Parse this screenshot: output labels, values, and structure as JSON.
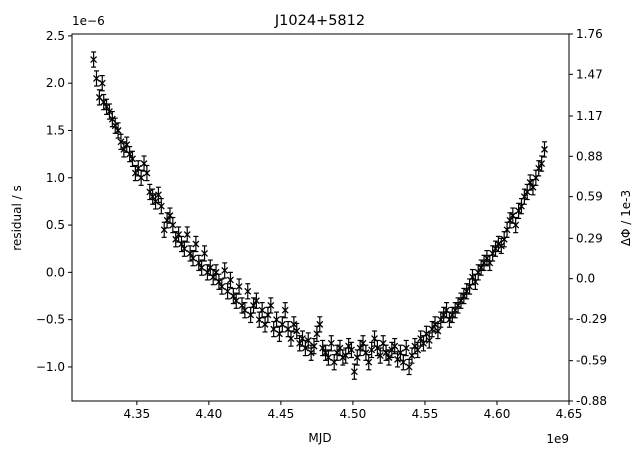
{
  "chart_data": {
    "type": "scatter",
    "title": "J1024+5812",
    "xlabel": "MJD",
    "ylabel": "residual / s",
    "ylabel_right": "ΔΦ / 1e-3",
    "x_offset_text": "1e9",
    "y_offset_text": "1e−6",
    "marker": "x",
    "error_bars": true,
    "grid": false,
    "xlim": [
      4.305,
      4.65
    ],
    "ylim": [
      -1.36,
      2.52
    ],
    "x_ticks": [
      4.35,
      4.4,
      4.45,
      4.5,
      4.55,
      4.6,
      4.65
    ],
    "x_tick_labels": [
      "4.35",
      "4.40",
      "4.45",
      "4.50",
      "4.55",
      "4.60",
      "4.65"
    ],
    "y_ticks": [
      -1.0,
      -0.5,
      0.0,
      0.5,
      1.0,
      1.5,
      2.0,
      2.5
    ],
    "y_tick_labels": [
      "−1.0",
      "−0.5",
      "0.0",
      "0.5",
      "1.0",
      "1.5",
      "2.0",
      "2.5"
    ],
    "y_right_ticks": [
      -0.88,
      -0.59,
      -0.29,
      0.0,
      0.29,
      0.59,
      0.88,
      1.17,
      1.47,
      1.76
    ],
    "y_right_tick_labels": [
      "-0.88",
      "-0.59",
      "-0.29",
      "0.0",
      "0.29",
      "0.59",
      "0.88",
      "1.17",
      "1.47",
      "1.76"
    ],
    "y_right_lim": [
      -0.88,
      1.76
    ],
    "error": 0.08,
    "points": [
      [
        4.32,
        2.25
      ],
      [
        4.322,
        2.05
      ],
      [
        4.324,
        1.85
      ],
      [
        4.326,
        2.0
      ],
      [
        4.327,
        1.8
      ],
      [
        4.329,
        1.75
      ],
      [
        4.331,
        1.7
      ],
      [
        4.333,
        1.62
      ],
      [
        4.335,
        1.55
      ],
      [
        4.337,
        1.5
      ],
      [
        4.339,
        1.38
      ],
      [
        4.341,
        1.3
      ],
      [
        4.343,
        1.35
      ],
      [
        4.345,
        1.25
      ],
      [
        4.347,
        1.2
      ],
      [
        4.349,
        1.05
      ],
      [
        4.351,
        1.1
      ],
      [
        4.353,
        1.0
      ],
      [
        4.355,
        1.15
      ],
      [
        4.357,
        1.05
      ],
      [
        4.359,
        0.85
      ],
      [
        4.361,
        0.8
      ],
      [
        4.363,
        0.75
      ],
      [
        4.365,
        0.82
      ],
      [
        4.367,
        0.7
      ],
      [
        4.369,
        0.45
      ],
      [
        4.371,
        0.55
      ],
      [
        4.373,
        0.6
      ],
      [
        4.375,
        0.5
      ],
      [
        4.377,
        0.35
      ],
      [
        4.379,
        0.4
      ],
      [
        4.381,
        0.3
      ],
      [
        4.383,
        0.25
      ],
      [
        4.385,
        0.4
      ],
      [
        4.387,
        0.2
      ],
      [
        4.389,
        0.15
      ],
      [
        4.391,
        0.3
      ],
      [
        4.393,
        0.1
      ],
      [
        4.395,
        0.05
      ],
      [
        4.397,
        0.2
      ],
      [
        4.399,
        0.0
      ],
      [
        4.401,
        0.05
      ],
      [
        4.403,
        -0.05
      ],
      [
        4.405,
        0.0
      ],
      [
        4.407,
        -0.1
      ],
      [
        4.409,
        -0.15
      ],
      [
        4.411,
        0.02
      ],
      [
        4.413,
        -0.2
      ],
      [
        4.415,
        -0.08
      ],
      [
        4.417,
        -0.25
      ],
      [
        4.419,
        -0.3
      ],
      [
        4.421,
        -0.15
      ],
      [
        4.423,
        -0.35
      ],
      [
        4.425,
        -0.4
      ],
      [
        4.427,
        -0.2
      ],
      [
        4.429,
        -0.45
      ],
      [
        4.431,
        -0.35
      ],
      [
        4.433,
        -0.3
      ],
      [
        4.435,
        -0.5
      ],
      [
        4.437,
        -0.4
      ],
      [
        4.439,
        -0.55
      ],
      [
        4.441,
        -0.45
      ],
      [
        4.443,
        -0.35
      ],
      [
        4.445,
        -0.6
      ],
      [
        4.447,
        -0.5
      ],
      [
        4.449,
        -0.65
      ],
      [
        4.451,
        -0.55
      ],
      [
        4.453,
        -0.4
      ],
      [
        4.455,
        -0.6
      ],
      [
        4.457,
        -0.7
      ],
      [
        4.459,
        -0.55
      ],
      [
        4.461,
        -0.62
      ],
      [
        4.463,
        -0.75
      ],
      [
        4.465,
        -0.7
      ],
      [
        4.467,
        -0.8
      ],
      [
        4.469,
        -0.72
      ],
      [
        4.471,
        -0.85
      ],
      [
        4.473,
        -0.78
      ],
      [
        4.475,
        -0.65
      ],
      [
        4.477,
        -0.55
      ],
      [
        4.479,
        -0.8
      ],
      [
        4.481,
        -0.85
      ],
      [
        4.483,
        -0.9
      ],
      [
        4.485,
        -0.75
      ],
      [
        4.487,
        -0.95
      ],
      [
        4.489,
        -0.85
      ],
      [
        4.491,
        -0.8
      ],
      [
        4.493,
        -0.9
      ],
      [
        4.495,
        -0.88
      ],
      [
        4.497,
        -0.78
      ],
      [
        4.499,
        -0.82
      ],
      [
        4.501,
        -1.05
      ],
      [
        4.503,
        -0.9
      ],
      [
        4.505,
        -0.8
      ],
      [
        4.507,
        -0.75
      ],
      [
        4.509,
        -0.85
      ],
      [
        4.511,
        -0.95
      ],
      [
        4.513,
        -0.82
      ],
      [
        4.515,
        -0.7
      ],
      [
        4.517,
        -0.8
      ],
      [
        4.519,
        -0.88
      ],
      [
        4.521,
        -0.75
      ],
      [
        4.523,
        -0.85
      ],
      [
        4.525,
        -0.9
      ],
      [
        4.527,
        -0.82
      ],
      [
        4.529,
        -0.78
      ],
      [
        4.531,
        -0.92
      ],
      [
        4.533,
        -0.85
      ],
      [
        4.535,
        -0.95
      ],
      [
        4.537,
        -0.8
      ],
      [
        4.539,
        -1.0
      ],
      [
        4.541,
        -0.88
      ],
      [
        4.543,
        -0.78
      ],
      [
        4.545,
        -0.82
      ],
      [
        4.547,
        -0.7
      ],
      [
        4.549,
        -0.75
      ],
      [
        4.551,
        -0.65
      ],
      [
        4.553,
        -0.72
      ],
      [
        4.555,
        -0.6
      ],
      [
        4.557,
        -0.55
      ],
      [
        4.559,
        -0.62
      ],
      [
        4.561,
        -0.5
      ],
      [
        4.563,
        -0.45
      ],
      [
        4.565,
        -0.4
      ],
      [
        4.567,
        -0.5
      ],
      [
        4.569,
        -0.45
      ],
      [
        4.571,
        -0.4
      ],
      [
        4.573,
        -0.35
      ],
      [
        4.575,
        -0.3
      ],
      [
        4.577,
        -0.25
      ],
      [
        4.579,
        -0.2
      ],
      [
        4.581,
        -0.15
      ],
      [
        4.583,
        -0.05
      ],
      [
        4.585,
        -0.1
      ],
      [
        4.587,
        0.0
      ],
      [
        4.589,
        0.05
      ],
      [
        4.591,
        0.1
      ],
      [
        4.593,
        0.15
      ],
      [
        4.595,
        0.1
      ],
      [
        4.597,
        0.2
      ],
      [
        4.599,
        0.25
      ],
      [
        4.601,
        0.3
      ],
      [
        4.603,
        0.28
      ],
      [
        4.605,
        0.35
      ],
      [
        4.607,
        0.45
      ],
      [
        4.609,
        0.55
      ],
      [
        4.611,
        0.6
      ],
      [
        4.613,
        0.5
      ],
      [
        4.615,
        0.65
      ],
      [
        4.617,
        0.7
      ],
      [
        4.619,
        0.8
      ],
      [
        4.621,
        0.85
      ],
      [
        4.623,
        0.95
      ],
      [
        4.625,
        0.9
      ],
      [
        4.627,
        1.0
      ],
      [
        4.629,
        1.1
      ],
      [
        4.631,
        1.15
      ],
      [
        4.633,
        1.3
      ]
    ]
  }
}
